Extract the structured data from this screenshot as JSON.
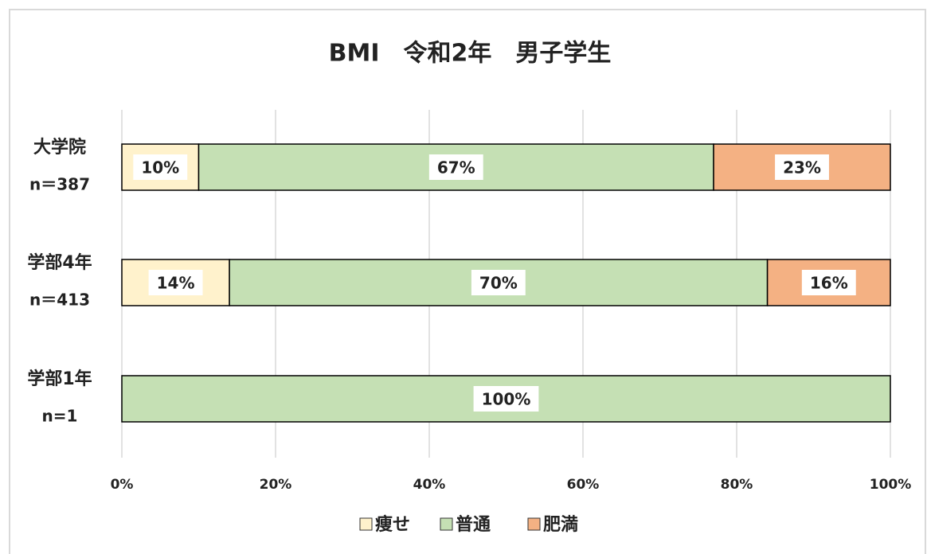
{
  "chart_data": {
    "type": "stacked-bar-horizontal",
    "title": "BMI　令和2年　男子学生",
    "categories": [
      [
        "大学院",
        "n＝387"
      ],
      [
        "学部4年",
        "n＝413"
      ],
      [
        "学部1年",
        "n=1"
      ]
    ],
    "series": [
      {
        "name": "痩せ",
        "color": "#fff2cc",
        "values": [
          10,
          14,
          0
        ],
        "value_labels": [
          "10%",
          "14%",
          null
        ]
      },
      {
        "name": "普通",
        "color": "#c5e0b4",
        "values": [
          67,
          70,
          100
        ],
        "value_labels": [
          "67%",
          "70%",
          "100%"
        ]
      },
      {
        "name": "肥満",
        "color": "#f4b183",
        "values": [
          23,
          16,
          0
        ],
        "value_labels": [
          "23%",
          "16%",
          null
        ]
      }
    ],
    "xlim": [
      0,
      100
    ],
    "xticks": [
      {
        "value": 0,
        "label": "0%"
      },
      {
        "value": 20,
        "label": "20%"
      },
      {
        "value": 40,
        "label": "40%"
      },
      {
        "value": 60,
        "label": "60%"
      },
      {
        "value": 80,
        "label": "80%"
      },
      {
        "value": 100,
        "label": "100%"
      }
    ],
    "grid": true,
    "legend": "bottom"
  }
}
